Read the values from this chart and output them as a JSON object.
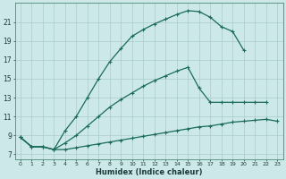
{
  "xlabel": "Humidex (Indice chaleur)",
  "bg_color": "#cce8e8",
  "grid_color": "#aacccc",
  "line_color": "#1a6b5a",
  "xlim": [
    -0.5,
    23.5
  ],
  "ylim": [
    6.5,
    23.0
  ],
  "xticks": [
    0,
    1,
    2,
    3,
    4,
    5,
    6,
    7,
    8,
    9,
    10,
    11,
    12,
    13,
    14,
    15,
    16,
    17,
    18,
    19,
    20,
    21,
    22,
    23
  ],
  "yticks": [
    7,
    9,
    11,
    13,
    15,
    17,
    19,
    21
  ],
  "line_top_x": [
    0,
    1,
    2,
    3,
    4,
    5,
    6,
    7,
    8,
    9,
    10,
    11,
    12,
    13,
    14,
    15,
    16,
    17,
    18,
    19,
    20
  ],
  "line_top_y": [
    8.8,
    7.8,
    7.8,
    7.5,
    9.5,
    11.0,
    13.0,
    15.0,
    16.8,
    18.2,
    19.5,
    20.2,
    20.8,
    21.3,
    21.8,
    22.2,
    22.1,
    21.5,
    20.5,
    20.0,
    18.0
  ],
  "line_mid_x": [
    0,
    1,
    2,
    3,
    4,
    5,
    6,
    7,
    8,
    9,
    10,
    11,
    12,
    13,
    14,
    15,
    16,
    17,
    18,
    19,
    20,
    21,
    22
  ],
  "line_mid_y": [
    8.8,
    7.8,
    7.8,
    7.5,
    8.2,
    9.0,
    10.0,
    11.0,
    12.0,
    12.8,
    13.5,
    14.2,
    14.8,
    15.3,
    15.8,
    16.2,
    14.0,
    12.5,
    12.5,
    12.5,
    12.5,
    12.5,
    12.5
  ],
  "line_bot_x": [
    0,
    1,
    2,
    3,
    4,
    5,
    6,
    7,
    8,
    9,
    10,
    11,
    12,
    13,
    14,
    15,
    16,
    17,
    18,
    19,
    20,
    21,
    22,
    23
  ],
  "line_bot_y": [
    8.8,
    7.8,
    7.8,
    7.5,
    7.5,
    7.7,
    7.9,
    8.1,
    8.3,
    8.5,
    8.7,
    8.9,
    9.1,
    9.3,
    9.5,
    9.7,
    9.9,
    10.0,
    10.2,
    10.4,
    10.5,
    10.6,
    10.7,
    10.5
  ]
}
